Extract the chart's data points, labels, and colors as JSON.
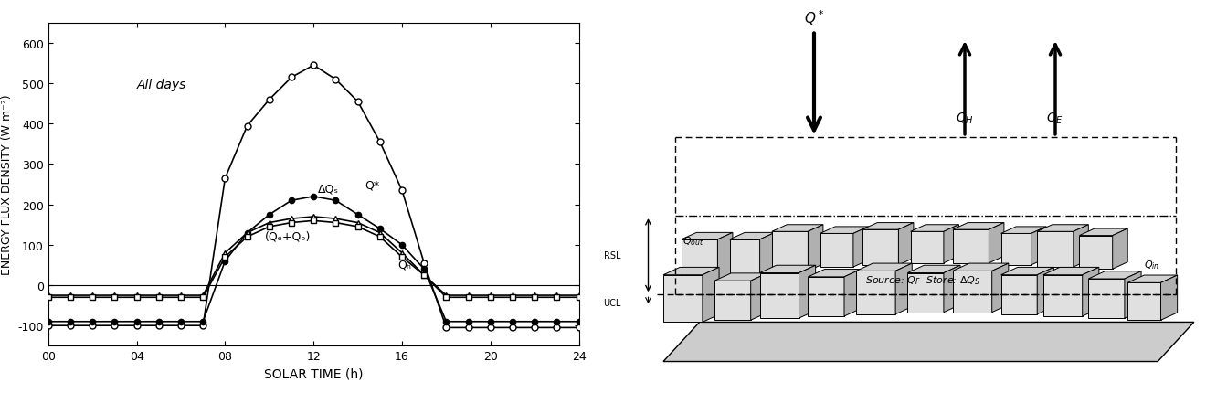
{
  "time": [
    0,
    1,
    2,
    3,
    4,
    5,
    6,
    7,
    8,
    9,
    10,
    11,
    12,
    13,
    14,
    15,
    16,
    17,
    18,
    19,
    20,
    21,
    22,
    23,
    24
  ],
  "Q_star": [
    -100,
    -100,
    -100,
    -100,
    -100,
    -100,
    -100,
    -100,
    265,
    395,
    460,
    515,
    545,
    510,
    455,
    355,
    235,
    55,
    -105,
    -105,
    -105,
    -105,
    -105,
    -105,
    -105
  ],
  "delta_Qs": [
    -90,
    -90,
    -90,
    -90,
    -90,
    -90,
    -90,
    -90,
    60,
    130,
    175,
    210,
    220,
    210,
    175,
    140,
    100,
    40,
    -90,
    -90,
    -90,
    -90,
    -90,
    -90,
    -90
  ],
  "QH": [
    -25,
    -25,
    -25,
    -25,
    -25,
    -25,
    -25,
    -25,
    80,
    130,
    155,
    165,
    170,
    165,
    155,
    130,
    80,
    25,
    -25,
    -25,
    -25,
    -25,
    -25,
    -25,
    -25
  ],
  "QE_QF": [
    -30,
    -30,
    -30,
    -30,
    -30,
    -30,
    -30,
    -30,
    70,
    120,
    145,
    155,
    160,
    155,
    145,
    120,
    70,
    25,
    -30,
    -30,
    -30,
    -30,
    -30,
    -30,
    -30
  ],
  "ylabel": "ENERGY FLUX DENSITY (W m⁻²)",
  "xlabel": "SOLAR TIME (h)",
  "annotation": "All days",
  "label_Qstar": "Q*",
  "label_dQs": "ΔQₛ",
  "label_QH": "Qₕ",
  "label_QEF": "(Qₑ+Qₔ)",
  "ylim": [
    -150,
    650
  ],
  "xlim": [
    0,
    24
  ],
  "xticks": [
    0,
    4,
    8,
    12,
    16,
    20,
    24
  ],
  "xticklabels": [
    "00",
    "04",
    "08",
    "12",
    "16",
    "20",
    "24"
  ],
  "yticks": [
    -100,
    0,
    100,
    200,
    300,
    400,
    500,
    600
  ],
  "bg_color": "#f0f0f0",
  "line_color": "#222222"
}
